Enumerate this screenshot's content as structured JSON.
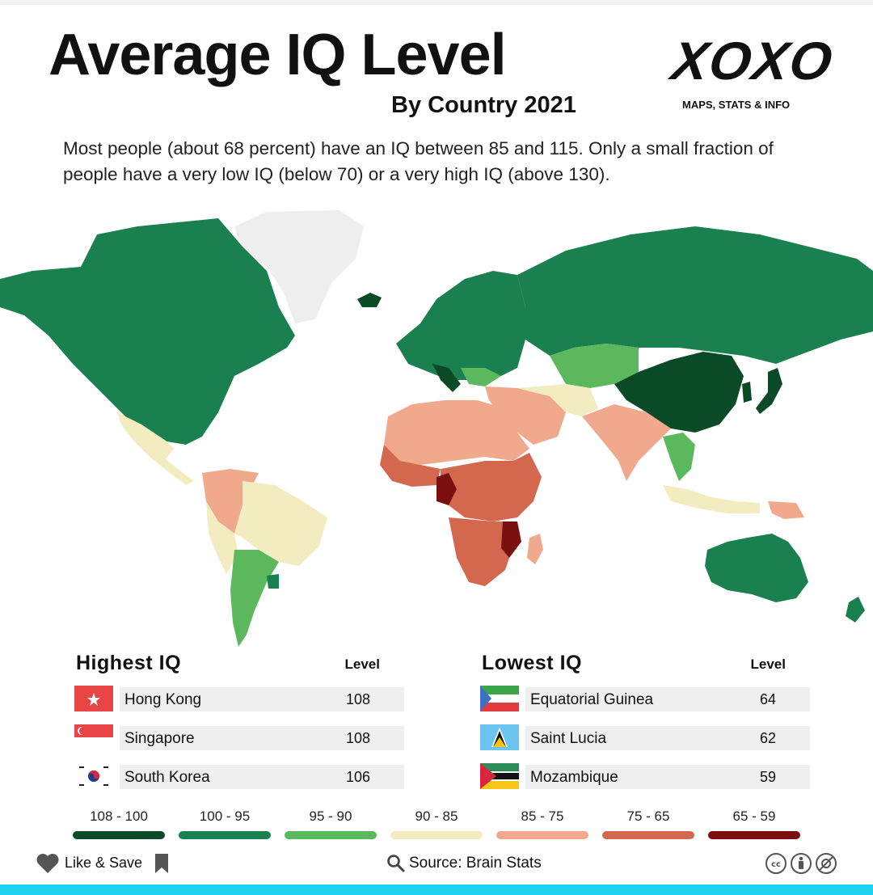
{
  "title": "Average IQ Level",
  "subtitle": "By Country 2021",
  "logo": {
    "text": "XOXO",
    "tagline": "MAPS, STATS & INFO"
  },
  "description": "Most people (about 68 percent) have an IQ between 85 and 115. Only a small fraction of people have a very low IQ (below 70) or a very high IQ (above 130).",
  "highest": {
    "title": "Highest  IQ",
    "level_header": "Level",
    "rows": [
      {
        "country": "Hong Kong",
        "level": "108",
        "flag": "hong-kong-flag"
      },
      {
        "country": "Singapore",
        "level": "108",
        "flag": "singapore-flag"
      },
      {
        "country": "South Korea",
        "level": "106",
        "flag": "south-korea-flag"
      }
    ]
  },
  "lowest": {
    "title": "Lowest  IQ",
    "level_header": "Level",
    "rows": [
      {
        "country": "Equatorial Guinea",
        "level": "64",
        "flag": "equatorial-guinea-flag"
      },
      {
        "country": "Saint Lucia",
        "level": "62",
        "flag": "saint-lucia-flag"
      },
      {
        "country": "Mozambique",
        "level": "59",
        "flag": "mozambique-flag"
      }
    ]
  },
  "legend": [
    {
      "label": "108 - 100",
      "color": "#0a4a26"
    },
    {
      "label": "100 - 95",
      "color": "#1a8050"
    },
    {
      "label": "95 - 90",
      "color": "#5cb85c"
    },
    {
      "label": "90 - 85",
      "color": "#f3ecc0"
    },
    {
      "label": "85 - 75",
      "color": "#f0a98c"
    },
    {
      "label": "75 - 65",
      "color": "#d4684e"
    },
    {
      "label": "65 - 59",
      "color": "#7a1010"
    }
  ],
  "map_colors": {
    "no_data": "#eeeeee",
    "level_108_100": "#0a4a26",
    "level_100_95": "#1a8050",
    "level_95_90": "#5cb85c",
    "level_90_85": "#f3ecc0",
    "level_85_75": "#f0a98c",
    "level_75_65": "#d4684e",
    "level_65_59": "#7a1010"
  },
  "footer": {
    "like_save": "Like & Save",
    "source": "Source: Brain Stats",
    "like_icons": [
      "heart-icon",
      "bookmark-icon"
    ],
    "source_icon": "search-icon",
    "license_icons": [
      "creative-commons-icon",
      "attribution-icon",
      "noncommercial-icon"
    ]
  },
  "accent_bar_color": "#1fd2f0"
}
